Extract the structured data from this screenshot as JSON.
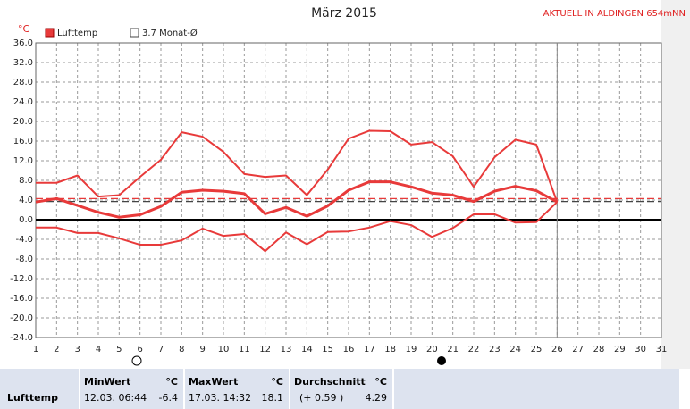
{
  "chart_data": {
    "type": "line",
    "title": "März 2015",
    "station": "AKTUELL IN ALDINGEN 654mNN",
    "y_unit": "°C",
    "legend_label": "Lufttemp",
    "x": [
      1,
      2,
      3,
      4,
      5,
      6,
      7,
      8,
      9,
      10,
      11,
      12,
      13,
      14,
      15,
      16,
      17,
      18,
      19,
      20,
      21,
      22,
      23,
      24,
      25,
      26
    ],
    "series": [
      {
        "color": "#e83a3a",
        "width": 2,
        "values": [
          7.5,
          7.5,
          9.0,
          4.7,
          5.0,
          8.7,
          12.2,
          17.8,
          16.9,
          13.8,
          9.3,
          8.7,
          9.0,
          5.0,
          10.2,
          16.5,
          18.1,
          18.0,
          15.3,
          15.8,
          12.9,
          6.7,
          12.7,
          16.3,
          15.3,
          3.6
        ]
      },
      {
        "color": "#e83a3a",
        "width": 3,
        "values": [
          3.6,
          4.3,
          2.9,
          1.5,
          0.5,
          1.0,
          2.7,
          5.6,
          6.0,
          5.8,
          5.3,
          1.2,
          2.5,
          0.7,
          2.8,
          6.0,
          7.7,
          7.7,
          6.7,
          5.4,
          5.0,
          3.7,
          5.8,
          6.8,
          5.9,
          3.6
        ]
      },
      {
        "color": "#e83a3a",
        "width": 2,
        "values": [
          -1.6,
          -1.6,
          -2.7,
          -2.7,
          -3.8,
          -5.1,
          -5.1,
          -4.2,
          -1.8,
          -3.3,
          -2.9,
          -6.4,
          -2.6,
          -5.0,
          -2.5,
          -2.4,
          -1.6,
          -0.3,
          -1.1,
          -3.5,
          -1.7,
          1.1,
          1.1,
          -0.6,
          -0.5,
          3.6
        ]
      }
    ],
    "reference_lines": [
      {
        "value": 3.7,
        "label": "3.7 Monat-Ø",
        "color": "#444"
      },
      {
        "value": 4.29,
        "color": "#e83a3a"
      }
    ],
    "marker_x": 26,
    "xlim": [
      1,
      31
    ],
    "xticks": [
      1,
      2,
      3,
      4,
      5,
      6,
      7,
      8,
      9,
      10,
      11,
      12,
      13,
      14,
      15,
      16,
      17,
      18,
      19,
      20,
      21,
      22,
      23,
      24,
      25,
      26,
      27,
      28,
      29,
      30,
      31
    ],
    "ylim": [
      -24,
      36
    ],
    "yticks": [
      {
        "value": 36,
        "label": "36.0"
      },
      {
        "value": 32,
        "label": "32.0"
      },
      {
        "value": 28,
        "label": "28.0"
      },
      {
        "value": 24,
        "label": "24.0"
      },
      {
        "value": 20,
        "label": "20.0"
      },
      {
        "value": 16,
        "label": "16.0"
      },
      {
        "value": 12,
        "label": "12.0"
      },
      {
        "value": 8,
        "label": "8.0"
      },
      {
        "value": 4,
        "label": "4.0"
      },
      {
        "value": 0,
        "label": "0.0"
      },
      {
        "value": -4,
        "label": "-4.0"
      },
      {
        "value": -8,
        "label": "-8.0"
      },
      {
        "value": -12,
        "label": "-12.0"
      },
      {
        "value": -16,
        "label": "-16.0"
      },
      {
        "value": -20,
        "label": "-20.0"
      },
      {
        "value": -24,
        "label": "-24.0"
      }
    ],
    "grid": true
  },
  "table": {
    "headers": [
      [
        "MinWert",
        "°C"
      ],
      [
        "MaxWert",
        "°C"
      ],
      [
        "Durchschnitt",
        "°C"
      ]
    ],
    "rows": [
      [
        "Lufttemp",
        "12.03.  06:44",
        "-6.4",
        "17.03.  14:32",
        "18.1",
        "(+ 0.59 )",
        "4.29"
      ]
    ]
  }
}
